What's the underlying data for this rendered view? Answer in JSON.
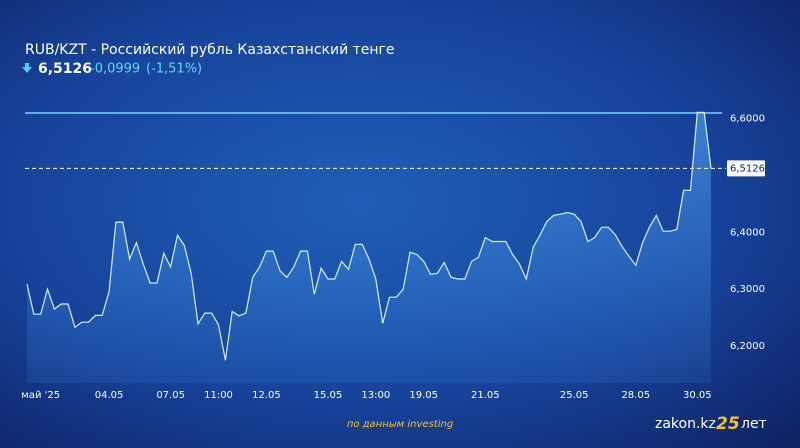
{
  "chart_data": {
    "type": "line",
    "title": "RUB/KZT - Российский рубль Казахстанский тенге",
    "price": "6,5126",
    "change": "-0,0999",
    "change_pct": "(-1,51%)",
    "source": "по данным investing",
    "brand": "zakon.kz",
    "brand_badge": "25",
    "brand_suffix": "лет",
    "color": "#d8ecff",
    "x": [
      0,
      1,
      2,
      3,
      4,
      5,
      6,
      7,
      8,
      9,
      10,
      11,
      12,
      13,
      14,
      15,
      16,
      17,
      18,
      19,
      20,
      21,
      22,
      23,
      24,
      25,
      26,
      27,
      28,
      29,
      30,
      31,
      32,
      33,
      34,
      35,
      36,
      37,
      38,
      39,
      40,
      41,
      42,
      43,
      44,
      45,
      46,
      47,
      48,
      49,
      50,
      51,
      52,
      53,
      54,
      55,
      56,
      57,
      58,
      59,
      60,
      61,
      62,
      63,
      64,
      65,
      66,
      67,
      68,
      69,
      70,
      71,
      72,
      73,
      74,
      75,
      76,
      77,
      78,
      79,
      80,
      81,
      82,
      83,
      84,
      85,
      86,
      87,
      88,
      89,
      90,
      91,
      92,
      93,
      94,
      95,
      96,
      97,
      98,
      99,
      100
    ],
    "values": [
      6.309,
      6.256,
      6.256,
      6.3,
      6.265,
      6.274,
      6.274,
      6.233,
      6.242,
      6.242,
      6.254,
      6.254,
      6.296,
      6.418,
      6.418,
      6.353,
      6.382,
      6.344,
      6.311,
      6.311,
      6.363,
      6.339,
      6.395,
      6.377,
      6.328,
      6.239,
      6.258,
      6.258,
      6.237,
      6.175,
      6.261,
      6.253,
      6.258,
      6.321,
      6.339,
      6.367,
      6.367,
      6.332,
      6.321,
      6.339,
      6.367,
      6.367,
      6.291,
      6.337,
      6.318,
      6.318,
      6.349,
      6.335,
      6.379,
      6.379,
      6.353,
      6.318,
      6.24,
      6.286,
      6.286,
      6.3,
      6.365,
      6.361,
      6.349,
      6.326,
      6.328,
      6.347,
      6.321,
      6.318,
      6.318,
      6.349,
      6.356,
      6.391,
      6.384,
      6.384,
      6.384,
      6.361,
      6.344,
      6.318,
      6.374,
      6.395,
      6.419,
      6.43,
      6.432,
      6.435,
      6.432,
      6.419,
      6.384,
      6.391,
      6.409,
      6.409,
      6.396,
      6.375,
      6.358,
      6.342,
      6.382,
      6.409,
      6.43,
      6.402,
      6.402,
      6.405,
      6.474,
      6.474,
      6.611,
      6.611,
      6.5126
    ],
    "xlim": [
      0,
      100
    ],
    "xticks": [
      {
        "value": 2,
        "label": "май '25"
      },
      {
        "value": 12,
        "label": "04.05"
      },
      {
        "value": 21,
        "label": "07.05"
      },
      {
        "value": 28,
        "label": "11:00"
      },
      {
        "value": 35,
        "label": "12.05"
      },
      {
        "value": 44,
        "label": "15.05"
      },
      {
        "value": 51,
        "label": "13:00"
      },
      {
        "value": 58,
        "label": "19.05"
      },
      {
        "value": 67,
        "label": "21.05"
      },
      {
        "value": 80,
        "label": "25.05"
      },
      {
        "value": 89,
        "label": "28.05"
      },
      {
        "value": 98,
        "label": "30.05"
      }
    ],
    "ylim": [
      6.135,
      6.61
    ],
    "yticks": [
      {
        "value": 6.2,
        "label": "6,2000"
      },
      {
        "value": 6.3,
        "label": "6,3000"
      },
      {
        "value": 6.4,
        "label": "6,4000"
      },
      {
        "value": 6.6,
        "label": "6,6000"
      }
    ],
    "last_value": {
      "value": 6.5126,
      "label": "6,5126"
    }
  }
}
